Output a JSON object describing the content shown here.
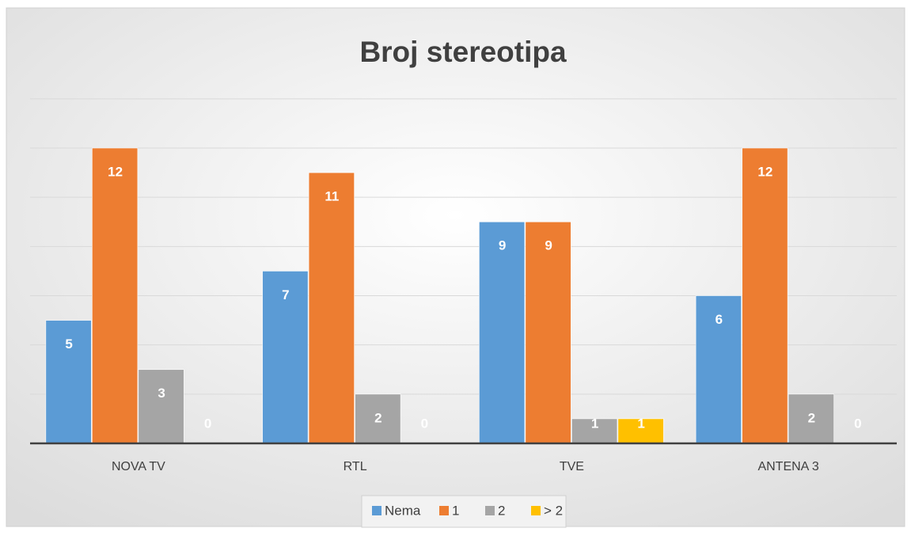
{
  "chart_data": {
    "type": "bar",
    "title": "Broj stereotipa",
    "categories": [
      "NOVA TV",
      "RTL",
      "TVE",
      "ANTENA 3"
    ],
    "series": [
      {
        "name": "Nema",
        "color": "#5b9bd5",
        "values": [
          5,
          7,
          9,
          6
        ]
      },
      {
        "name": "1",
        "color": "#ed7d31",
        "values": [
          12,
          11,
          9,
          12
        ]
      },
      {
        "name": "2",
        "color": "#a5a5a5",
        "values": [
          3,
          2,
          1,
          2
        ]
      },
      {
        "name": "> 2",
        "color": "#ffc000",
        "values": [
          0,
          0,
          1,
          0
        ]
      }
    ],
    "ylim": [
      0,
      14
    ],
    "yticks": [
      0,
      2,
      4,
      6,
      8,
      10,
      12,
      14
    ],
    "grid": true,
    "legend": "bottom"
  }
}
